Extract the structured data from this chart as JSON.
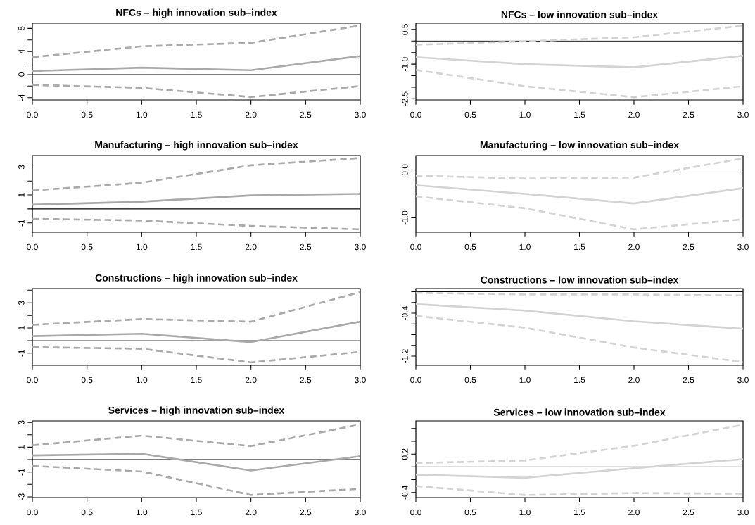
{
  "chart_data": [
    {
      "type": "line",
      "title": "NFCs – high innovation sub–index",
      "x": [
        0,
        1,
        2,
        3
      ],
      "xlim": [
        0,
        3
      ],
      "xticks": [
        {
          "value": 0,
          "label": "0.0"
        },
        0.5,
        {
          "value": 1,
          "label": "1.0"
        },
        1.5,
        {
          "value": 2,
          "label": "2.0"
        },
        2.5,
        {
          "value": 3,
          "label": "3.0"
        }
      ],
      "ylim": [
        -4.4,
        8.9
      ],
      "yticks": [
        -4,
        {
          "value": -2,
          "label": null
        },
        0,
        {
          "value": 2,
          "label": null
        },
        4,
        {
          "value": 6,
          "label": null
        },
        8
      ],
      "ref_lines": [
        {
          "axis": "y",
          "value": 0,
          "color": "#000000"
        }
      ],
      "series": [
        {
          "color": "#a9a9a9",
          "line_style": "solid",
          "values": [
            0.6,
            1.2,
            0.75,
            3.2
          ]
        },
        {
          "color": "#a9a9a9",
          "line_style": "dashed",
          "values": [
            3.0,
            4.9,
            5.5,
            8.5
          ]
        },
        {
          "color": "#a9a9a9",
          "line_style": "dashed",
          "values": [
            -1.8,
            -2.3,
            -3.9,
            -2.0
          ]
        }
      ]
    },
    {
      "type": "line",
      "title": "NFCs – low innovation sub–index",
      "x": [
        0,
        1,
        2,
        3
      ],
      "xlim": [
        0,
        3
      ],
      "xticks": [
        {
          "value": 0,
          "label": "0.0"
        },
        0.5,
        {
          "value": 1,
          "label": "1.0"
        },
        1.5,
        {
          "value": 2,
          "label": "2.0"
        },
        2.5,
        {
          "value": 3,
          "label": "3.0"
        }
      ],
      "ylim": [
        -2.55,
        0.77
      ],
      "yticks": [
        -2.5,
        {
          "value": -2,
          "label": null
        },
        {
          "value": -1.5,
          "label": null
        },
        {
          "value": -1,
          "label": "-1.0"
        },
        {
          "value": -0.5,
          "label": null
        },
        {
          "value": 0,
          "label": null
        },
        0.5
      ],
      "ref_lines": [
        {
          "axis": "y",
          "value": 0,
          "color": "#000000"
        }
      ],
      "series": [
        {
          "color": "#d3d3d3",
          "line_style": "solid",
          "values": [
            -0.7,
            -1.0,
            -1.14,
            -0.64
          ]
        },
        {
          "color": "#d3d3d3",
          "line_style": "dashed",
          "values": [
            -0.16,
            -0.01,
            0.16,
            0.66
          ]
        },
        {
          "color": "#d3d3d3",
          "line_style": "dashed",
          "values": [
            -1.25,
            -1.96,
            -2.43,
            -1.96
          ]
        }
      ]
    },
    {
      "type": "line",
      "title": "Manufacturing – high innovation sub–index",
      "x": [
        0,
        1,
        2,
        3
      ],
      "xlim": [
        0,
        3
      ],
      "xticks": [
        {
          "value": 0,
          "label": "0.0"
        },
        0.5,
        {
          "value": 1,
          "label": "1.0"
        },
        1.5,
        {
          "value": 2,
          "label": "2.0"
        },
        2.5,
        {
          "value": 3,
          "label": "3.0"
        }
      ],
      "ylim": [
        -1.67,
        3.83
      ],
      "yticks": [
        -1,
        {
          "value": 0,
          "label": null
        },
        1,
        {
          "value": 2,
          "label": null
        },
        3
      ],
      "ref_lines": [
        {
          "axis": "y",
          "value": 0,
          "color": "#000000"
        }
      ],
      "series": [
        {
          "color": "#a9a9a9",
          "line_style": "solid",
          "values": [
            0.3,
            0.52,
            0.97,
            1.08
          ]
        },
        {
          "color": "#a9a9a9",
          "line_style": "dashed",
          "values": [
            1.32,
            1.88,
            3.13,
            3.65
          ]
        },
        {
          "color": "#a9a9a9",
          "line_style": "dashed",
          "values": [
            -0.71,
            -0.83,
            -1.22,
            -1.46
          ]
        }
      ]
    },
    {
      "type": "line",
      "title": "Manufacturing – low innovation sub–index",
      "x": [
        0,
        1,
        2,
        3
      ],
      "xlim": [
        0,
        3
      ],
      "xticks": [
        {
          "value": 0,
          "label": "0.0"
        },
        0.5,
        {
          "value": 1,
          "label": "1.0"
        },
        1.5,
        {
          "value": 2,
          "label": "2.0"
        },
        2.5,
        {
          "value": 3,
          "label": "3.0"
        }
      ],
      "ylim": [
        -1.3,
        0.3
      ],
      "yticks": [
        {
          "value": -1,
          "label": "-1.0"
        },
        {
          "value": -0.5,
          "label": null
        },
        {
          "value": 0,
          "label": "0.0"
        }
      ],
      "ref_lines": [
        {
          "axis": "y",
          "value": 0,
          "color": "#000000"
        }
      ],
      "series": [
        {
          "color": "#d3d3d3",
          "line_style": "solid",
          "values": [
            -0.32,
            -0.5,
            -0.7,
            -0.38
          ]
        },
        {
          "color": "#d3d3d3",
          "line_style": "dashed",
          "values": [
            -0.12,
            -0.18,
            -0.16,
            0.24
          ]
        },
        {
          "color": "#d3d3d3",
          "line_style": "dashed",
          "values": [
            -0.55,
            -0.8,
            -1.24,
            -1.03
          ]
        }
      ]
    },
    {
      "type": "line",
      "title": "Constructions – high innovation sub–index",
      "x": [
        0,
        1,
        2,
        3
      ],
      "xlim": [
        0,
        3
      ],
      "xticks": [
        {
          "value": 0,
          "label": "0.0"
        },
        0.5,
        {
          "value": 1,
          "label": "1.0"
        },
        1.5,
        {
          "value": 2,
          "label": "2.0"
        },
        2.5,
        {
          "value": 3,
          "label": "3.0"
        }
      ],
      "ylim": [
        -1.96,
        4.13
      ],
      "yticks": [
        -1,
        {
          "value": 0,
          "label": null
        },
        1,
        {
          "value": 2,
          "label": null
        },
        3,
        {
          "value": 4,
          "label": null
        }
      ],
      "ref_lines": [
        {
          "axis": "y",
          "value": 0,
          "color": "#000000"
        }
      ],
      "series": [
        {
          "color": "#a9a9a9",
          "line_style": "solid",
          "values": [
            0.35,
            0.54,
            -0.12,
            1.5
          ]
        },
        {
          "color": "#a9a9a9",
          "line_style": "dashed",
          "values": [
            1.25,
            1.71,
            1.5,
            3.85
          ]
        },
        {
          "color": "#a9a9a9",
          "line_style": "dashed",
          "values": [
            -0.52,
            -0.65,
            -1.73,
            -0.9
          ]
        }
      ]
    },
    {
      "type": "line",
      "title": "Constructions – low innovation sub–index",
      "x": [
        0,
        1,
        2,
        3
      ],
      "xlim": [
        0,
        3
      ],
      "xticks": [
        {
          "value": 0,
          "label": "0.0"
        },
        0.5,
        {
          "value": 1,
          "label": "1.0"
        },
        1.5,
        {
          "value": 2,
          "label": "2.0"
        },
        2.5,
        {
          "value": 3,
          "label": "3.0"
        }
      ],
      "ylim": [
        -1.37,
        0.06
      ],
      "yticks": [
        {
          "value": -1.2,
          "label": "-1.2"
        },
        {
          "value": -1,
          "label": null
        },
        {
          "value": -0.8,
          "label": null
        },
        {
          "value": -0.6,
          "label": null
        },
        {
          "value": -0.4,
          "label": "-0.4"
        },
        {
          "value": -0.2,
          "label": null
        },
        {
          "value": 0,
          "label": null
        }
      ],
      "ref_lines": [
        {
          "axis": "y",
          "value": 0,
          "color": "#000000"
        }
      ],
      "series": [
        {
          "color": "#d3d3d3",
          "line_style": "solid",
          "values": [
            -0.23,
            -0.35,
            -0.55,
            -0.69
          ]
        },
        {
          "color": "#d3d3d3",
          "line_style": "dashed",
          "values": [
            -0.02,
            -0.05,
            -0.05,
            -0.07
          ]
        },
        {
          "color": "#d3d3d3",
          "line_style": "dashed",
          "values": [
            -0.45,
            -0.67,
            -1.04,
            -1.31
          ]
        }
      ]
    },
    {
      "type": "line",
      "title": "Services – high innovation sub–index",
      "x": [
        0,
        1,
        2,
        3
      ],
      "xlim": [
        0,
        3
      ],
      "xticks": [
        {
          "value": 0,
          "label": "0.0"
        },
        0.5,
        {
          "value": 1,
          "label": "1.0"
        },
        1.5,
        {
          "value": 2,
          "label": "2.0"
        },
        2.5,
        {
          "value": 3,
          "label": "3.0"
        }
      ],
      "ylim": [
        -3.06,
        3.12
      ],
      "yticks": [
        -3,
        {
          "value": -2,
          "label": null
        },
        -1,
        {
          "value": 0,
          "label": null
        },
        1,
        {
          "value": 2,
          "label": null
        },
        3
      ],
      "ref_lines": [
        {
          "axis": "y",
          "value": 0,
          "color": "#000000"
        }
      ],
      "series": [
        {
          "color": "#a9a9a9",
          "line_style": "solid",
          "values": [
            0.33,
            0.47,
            -0.88,
            0.27
          ]
        },
        {
          "color": "#a9a9a9",
          "line_style": "dashed",
          "values": [
            1.15,
            1.93,
            1.09,
            2.83
          ]
        },
        {
          "color": "#a9a9a9",
          "line_style": "dashed",
          "values": [
            -0.51,
            -0.96,
            -2.85,
            -2.36
          ]
        }
      ]
    },
    {
      "type": "line",
      "title": "Services – low innovation sub–index",
      "x": [
        0,
        1,
        2,
        3
      ],
      "xlim": [
        0,
        3
      ],
      "xticks": [
        {
          "value": 0,
          "label": "0.0"
        },
        0.5,
        {
          "value": 1,
          "label": "1.0"
        },
        1.5,
        {
          "value": 2,
          "label": "2.0"
        },
        2.5,
        {
          "value": 3,
          "label": "3.0"
        }
      ],
      "ylim": [
        -0.48,
        0.72
      ],
      "yticks": [
        -0.4,
        {
          "value": -0.2,
          "label": null
        },
        {
          "value": 0,
          "label": null
        },
        0.2,
        {
          "value": 0.4,
          "label": null
        },
        {
          "value": 0.6,
          "label": null
        }
      ],
      "ref_lines": [
        {
          "axis": "y",
          "value": 0,
          "color": "#000000"
        }
      ],
      "series": [
        {
          "color": "#d3d3d3",
          "line_style": "solid",
          "values": [
            -0.12,
            -0.17,
            -0.02,
            0.12
          ]
        },
        {
          "color": "#d3d3d3",
          "line_style": "dashed",
          "values": [
            0.06,
            0.1,
            0.33,
            0.66
          ]
        },
        {
          "color": "#d3d3d3",
          "line_style": "dashed",
          "values": [
            -0.3,
            -0.44,
            -0.41,
            -0.42
          ]
        }
      ]
    }
  ]
}
